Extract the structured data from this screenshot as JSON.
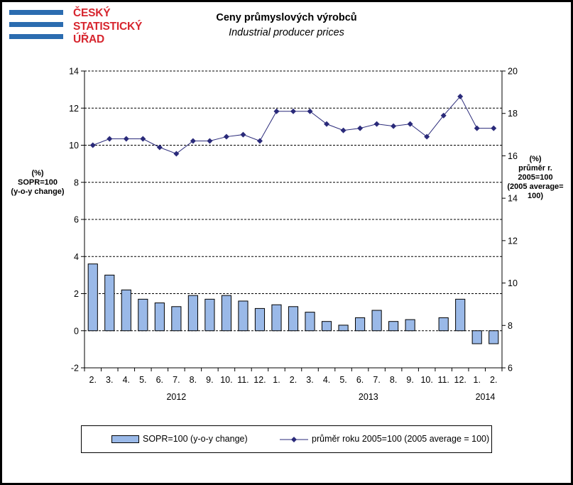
{
  "title": "Ceny průmyslových  výrobců",
  "subtitle": "Industrial producer  prices",
  "logo": {
    "lines": [
      "ČESKÝ",
      "STATISTICKÝ",
      "ÚŘAD"
    ],
    "colors": {
      "bars": "#2b6cb0",
      "text": "#d7262f"
    }
  },
  "axes": {
    "left_label": [
      "(%)",
      "SOPR=100",
      "(y-o-y change)"
    ],
    "right_label": [
      "(%)",
      "průměr r.",
      "2005=100",
      "(2005 average=",
      "100)"
    ]
  },
  "chart_data": {
    "type": "bar+line",
    "categories": [
      "2.",
      "3.",
      "4.",
      "5.",
      "6.",
      "7.",
      "8.",
      "9.",
      "10.",
      "11.",
      "12.",
      "1.",
      "2.",
      "3.",
      "4.",
      "5.",
      "6.",
      "7.",
      "8.",
      "9.",
      "10.",
      "11.",
      "12.",
      "1.",
      "2."
    ],
    "year_labels": [
      {
        "label": "2012",
        "category_index": 5
      },
      {
        "label": "2013",
        "category_index": 16.5
      },
      {
        "label": "2014",
        "category_index": 23.5
      }
    ],
    "series": [
      {
        "name": "SOPR=100 (y-o-y change)",
        "type": "bar",
        "axis": "left",
        "color": "#9ab9e8",
        "values": [
          3.6,
          3.0,
          2.2,
          1.7,
          1.5,
          1.3,
          1.9,
          1.7,
          1.9,
          1.6,
          1.2,
          1.4,
          1.3,
          1.0,
          0.5,
          0.3,
          0.7,
          1.1,
          0.5,
          0.6,
          0.0,
          0.7,
          1.7,
          -0.7,
          -0.7
        ]
      },
      {
        "name": "průměr roku 2005=100  (2005 average = 100)",
        "type": "line",
        "axis": "right",
        "color": "#2a2a7a",
        "values": [
          16.5,
          16.8,
          16.8,
          16.8,
          16.4,
          16.1,
          16.7,
          16.7,
          16.9,
          17.0,
          16.7,
          18.1,
          18.1,
          18.1,
          17.5,
          17.2,
          17.3,
          17.5,
          17.4,
          17.5,
          16.9,
          17.9,
          18.8,
          17.3,
          17.3
        ]
      }
    ],
    "y_left": {
      "min": -2,
      "max": 14,
      "ticks": [
        -2,
        0,
        2,
        4,
        6,
        8,
        10,
        12,
        14
      ]
    },
    "y_right": {
      "min": 6,
      "max": 20,
      "ticks": [
        6,
        8,
        10,
        12,
        14,
        16,
        18,
        20
      ]
    },
    "grid": "dashed horizontal",
    "legend_position": "bottom"
  }
}
